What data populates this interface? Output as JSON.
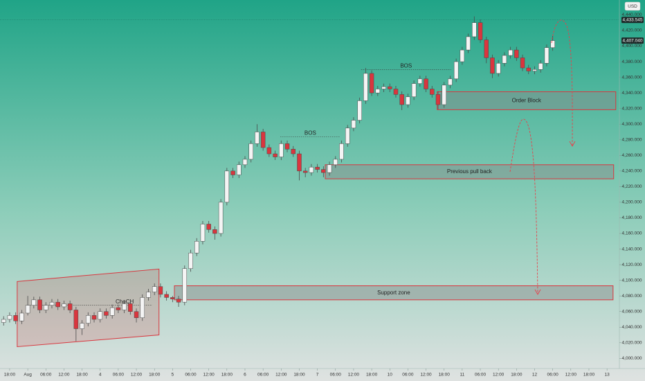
{
  "chart_data": {
    "type": "candlestick",
    "currency": "USD",
    "xlim": [
      -3.2,
      202.1
    ],
    "ylim": [
      3987,
      4459
    ],
    "xticks": [
      {
        "value": 0,
        "label": "18:00"
      },
      {
        "value": 6,
        "label": "Aug"
      },
      {
        "value": 12,
        "label": "06:00"
      },
      {
        "value": 18,
        "label": "12:00"
      },
      {
        "value": 24,
        "label": "18:00"
      },
      {
        "value": 30,
        "label": "4"
      },
      {
        "value": 36,
        "label": "06:00"
      },
      {
        "value": 42,
        "label": "12:00"
      },
      {
        "value": 48,
        "label": "18:00"
      },
      {
        "value": 54,
        "label": "5"
      },
      {
        "value": 60,
        "label": "06:00"
      },
      {
        "value": 66,
        "label": "12:00"
      },
      {
        "value": 72,
        "label": "18:00"
      },
      {
        "value": 78,
        "label": "6"
      },
      {
        "value": 84,
        "label": "06:00"
      },
      {
        "value": 90,
        "label": "12:00"
      },
      {
        "value": 96,
        "label": "18:00"
      },
      {
        "value": 102,
        "label": "7"
      },
      {
        "value": 108,
        "label": "06:00"
      },
      {
        "value": 114,
        "label": "12:00"
      },
      {
        "value": 120,
        "label": "18:00"
      },
      {
        "value": 126,
        "label": "10"
      },
      {
        "value": 132,
        "label": "06:00"
      },
      {
        "value": 138,
        "label": "12:00"
      },
      {
        "value": 144,
        "label": "18:00"
      },
      {
        "value": 150,
        "label": "11"
      },
      {
        "value": 156,
        "label": "06:00"
      },
      {
        "value": 162,
        "label": "12:00"
      },
      {
        "value": 168,
        "label": "18:00"
      },
      {
        "value": 174,
        "label": "12"
      },
      {
        "value": 180,
        "label": "06:00"
      },
      {
        "value": 186,
        "label": "12:00"
      },
      {
        "value": 192,
        "label": "18:00"
      },
      {
        "value": 198,
        "label": "13"
      }
    ],
    "yticks": [
      {
        "value": 4000,
        "label": "4,000.000"
      },
      {
        "value": 4020,
        "label": "4,020.000"
      },
      {
        "value": 4040,
        "label": "4,040.000"
      },
      {
        "value": 4060,
        "label": "4,060.000"
      },
      {
        "value": 4080,
        "label": "4,080.000"
      },
      {
        "value": 4100,
        "label": "4,100.000"
      },
      {
        "value": 4120,
        "label": "4,120.000"
      },
      {
        "value": 4140,
        "label": "4,140.000"
      },
      {
        "value": 4160,
        "label": "4,160.000"
      },
      {
        "value": 4180,
        "label": "4,180.000"
      },
      {
        "value": 4200,
        "label": "4,200.000"
      },
      {
        "value": 4220,
        "label": "4,220.000"
      },
      {
        "value": 4240,
        "label": "4,240.000"
      },
      {
        "value": 4260,
        "label": "4,260.000"
      },
      {
        "value": 4280,
        "label": "4,280.000"
      },
      {
        "value": 4300,
        "label": "4,300.000"
      },
      {
        "value": 4320,
        "label": "4,320.000"
      },
      {
        "value": 4340,
        "label": "4,340.000"
      },
      {
        "value": 4360,
        "label": "4,360.000"
      },
      {
        "value": 4380,
        "label": "4,380.000"
      },
      {
        "value": 4400,
        "label": "4,400.000"
      },
      {
        "value": 4420,
        "label": "4,420.000"
      },
      {
        "value": 4440,
        "label": "4,440.000"
      }
    ],
    "price_tags": [
      {
        "value": 4433.545,
        "label": "4,433.545"
      },
      {
        "value": 4407.04,
        "label": "4,407.040"
      }
    ],
    "up_color": "#f4f4f4",
    "down_color": "#d9363e",
    "wick_color": "#4a4a4a",
    "x": [
      -2,
      0,
      2,
      4,
      6,
      8,
      10,
      12,
      14,
      16,
      18,
      20,
      22,
      24,
      26,
      28,
      30,
      32,
      34,
      36,
      38,
      40,
      42,
      44,
      46,
      48,
      50,
      52,
      54,
      56,
      58,
      60,
      62,
      64,
      66,
      68,
      70,
      72,
      74,
      76,
      78,
      80,
      82,
      84,
      86,
      88,
      90,
      92,
      94,
      96,
      98,
      100,
      102,
      104,
      106,
      108,
      110,
      112,
      114,
      116,
      118,
      120,
      122,
      124,
      126,
      128,
      130,
      132,
      134,
      136,
      138,
      140,
      142,
      144,
      146,
      148,
      150,
      152,
      154,
      156,
      158,
      160,
      162,
      164,
      166,
      168,
      170,
      172,
      174,
      176,
      178,
      180
    ],
    "open": [
      4046,
      4050,
      4055,
      4048,
      4058,
      4068,
      4075,
      4062,
      4068,
      4072,
      4066,
      4070,
      4062,
      4038,
      4045,
      4055,
      4050,
      4060,
      4055,
      4065,
      4062,
      4070,
      4060,
      4052,
      4078,
      4085,
      4092,
      4082,
      4078,
      4076,
      4072,
      4115,
      4135,
      4150,
      4172,
      4165,
      4160,
      4200,
      4240,
      4235,
      4248,
      4255,
      4275,
      4290,
      4270,
      4262,
      4258,
      4275,
      4268,
      4262,
      4240,
      4238,
      4245,
      4242,
      4238,
      4248,
      4255,
      4275,
      4295,
      4305,
      4330,
      4365,
      4340,
      4345,
      4348,
      4345,
      4338,
      4325,
      4335,
      4352,
      4358,
      4345,
      4338,
      4325,
      4350,
      4358,
      4380,
      4395,
      4412,
      4430,
      4408,
      4385,
      4365,
      4378,
      4388,
      4395,
      4385,
      4372,
      4368,
      4370,
      4378,
      4398
    ],
    "high": [
      4054,
      4059,
      4059,
      4062,
      4080,
      4079,
      4079,
      4072,
      4076,
      4076,
      4074,
      4074,
      4066,
      4049,
      4059,
      4059,
      4064,
      4064,
      4069,
      4069,
      4074,
      4074,
      4064,
      4082,
      4089,
      4096,
      4096,
      4086,
      4080,
      4080,
      4119,
      4139,
      4154,
      4176,
      4176,
      4169,
      4204,
      4244,
      4244,
      4252,
      4259,
      4279,
      4300,
      4294,
      4274,
      4266,
      4279,
      4279,
      4272,
      4266,
      4244,
      4249,
      4249,
      4246,
      4252,
      4259,
      4279,
      4299,
      4309,
      4334,
      4372,
      4369,
      4349,
      4352,
      4352,
      4349,
      4342,
      4339,
      4356,
      4362,
      4362,
      4349,
      4342,
      4354,
      4362,
      4384,
      4399,
      4416,
      4438,
      4434,
      4412,
      4389,
      4382,
      4392,
      4399,
      4399,
      4389,
      4376,
      4374,
      4382,
      4402,
      4413
    ],
    "low": [
      4042,
      4046,
      4044,
      4044,
      4055,
      4064,
      4058,
      4058,
      4064,
      4062,
      4062,
      4058,
      4022,
      4030,
      4041,
      4046,
      4046,
      4051,
      4051,
      4058,
      4058,
      4056,
      4046,
      4048,
      4074,
      4081,
      4078,
      4074,
      4072,
      4066,
      4068,
      4111,
      4131,
      4146,
      4161,
      4152,
      4156,
      4196,
      4231,
      4231,
      4244,
      4251,
      4271,
      4266,
      4258,
      4254,
      4254,
      4264,
      4258,
      4228,
      4232,
      4234,
      4238,
      4232,
      4234,
      4244,
      4251,
      4271,
      4291,
      4301,
      4326,
      4336,
      4336,
      4341,
      4341,
      4334,
      4318,
      4321,
      4331,
      4348,
      4341,
      4334,
      4319,
      4321,
      4346,
      4354,
      4376,
      4391,
      4408,
      4404,
      4378,
      4359,
      4361,
      4374,
      4384,
      4381,
      4368,
      4364,
      4364,
      4366,
      4374,
      4394
    ],
    "close": [
      4050,
      4055,
      4048,
      4058,
      4068,
      4075,
      4062,
      4068,
      4072,
      4066,
      4070,
      4062,
      4038,
      4045,
      4055,
      4050,
      4060,
      4055,
      4065,
      4062,
      4070,
      4060,
      4052,
      4078,
      4085,
      4092,
      4082,
      4078,
      4076,
      4072,
      4115,
      4135,
      4150,
      4172,
      4165,
      4160,
      4200,
      4240,
      4235,
      4248,
      4255,
      4275,
      4290,
      4270,
      4262,
      4258,
      4275,
      4268,
      4262,
      4240,
      4238,
      4245,
      4242,
      4238,
      4248,
      4255,
      4275,
      4295,
      4305,
      4330,
      4365,
      4340,
      4345,
      4348,
      4345,
      4338,
      4325,
      4335,
      4352,
      4358,
      4345,
      4338,
      4325,
      4350,
      4358,
      4380,
      4395,
      4412,
      4430,
      4408,
      4385,
      4365,
      4378,
      4388,
      4395,
      4385,
      4372,
      4368,
      4370,
      4378,
      4398,
      4407
    ],
    "zones": [
      {
        "label": "Order Block",
        "x": [
          141.7,
          200.9
        ],
        "y": [
          4318.5,
          4341.5
        ]
      },
      {
        "label": "Previous pull back",
        "x": [
          104.6,
          200.2
        ],
        "y": [
          4230,
          4248
        ]
      },
      {
        "label": "Support zone",
        "x": [
          54.6,
          200
        ],
        "y": [
          4075,
          4093
        ]
      }
    ],
    "zone_color": "#d9363e",
    "channel": {
      "x": [
        2.5,
        49.5
      ],
      "upper": [
        4098.5,
        4114.4
      ],
      "lower": [
        4015,
        4030
      ]
    },
    "levels": [
      {
        "label": "BOS",
        "x": [
          89.7,
          109.6
        ],
        "y": 4284
      },
      {
        "label": "BOS",
        "x": [
          116.5,
          146.3
        ],
        "y": 4370
      },
      {
        "label": "ChoCH",
        "x": [
          6,
          47.3
        ],
        "y": 4068
      }
    ]
  }
}
